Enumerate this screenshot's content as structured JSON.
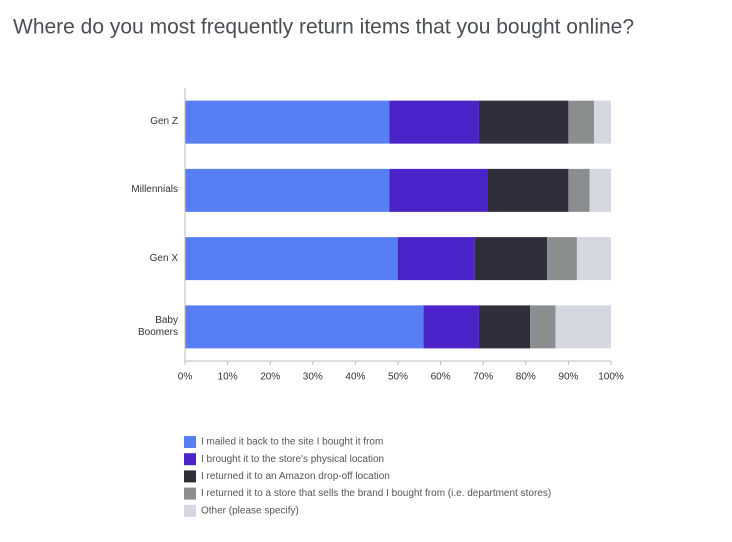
{
  "chart_data": {
    "type": "stacked-bar-horizontal",
    "title": "Where do you most frequently return items that you bought online?",
    "categories": [
      "Gen Z",
      "Millennials",
      "Gen X",
      "Baby Boomers"
    ],
    "series": [
      {
        "name": "I mailed it back to the site I bought it from",
        "color": "#587ef4",
        "values": [
          48,
          48,
          50,
          56
        ]
      },
      {
        "name": "I brought it to the store's physical location",
        "color": "#4b23c8",
        "values": [
          21,
          23,
          18,
          13
        ]
      },
      {
        "name": "I returned it to an Amazon drop-off location",
        "color": "#2f2e3a",
        "values": [
          21,
          19,
          17,
          12
        ]
      },
      {
        "name": "I returned it to a store that sells the brand I bought from (i.e. department stores)",
        "color": "#8b8e8e",
        "values": [
          6,
          5,
          7,
          6
        ]
      },
      {
        "name": "Other (please specify)",
        "color": "#d5d8e1",
        "values": [
          4,
          5,
          8,
          13
        ]
      }
    ],
    "xlim": [
      0,
      100
    ],
    "xticks": [
      {
        "value": 0,
        "label": "0%"
      },
      {
        "value": 10,
        "label": "10%"
      },
      {
        "value": 20,
        "label": "20%"
      },
      {
        "value": 30,
        "label": "30%"
      },
      {
        "value": 40,
        "label": "40%"
      },
      {
        "value": 50,
        "label": "50%"
      },
      {
        "value": 60,
        "label": "60%"
      },
      {
        "value": 70,
        "label": "70%"
      },
      {
        "value": 80,
        "label": "80%"
      },
      {
        "value": 90,
        "label": "90%"
      },
      {
        "value": 100,
        "label": "100%"
      }
    ]
  }
}
